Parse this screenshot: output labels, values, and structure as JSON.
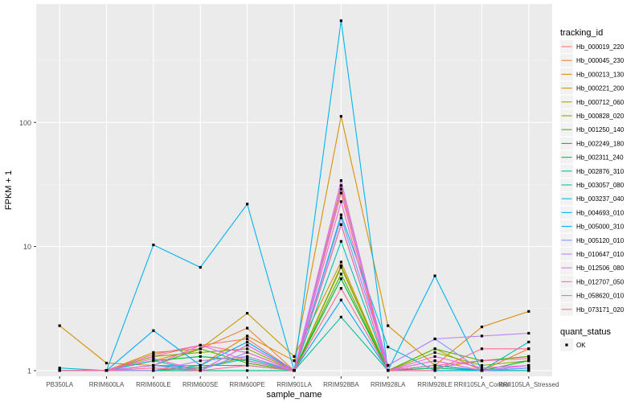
{
  "chart_data": {
    "type": "line",
    "xlabel": "sample_name",
    "ylabel": "FPKM + 1",
    "y_scale": "log10",
    "ylim": [
      0.9,
      900
    ],
    "y_ticks": [
      1,
      10,
      100
    ],
    "y_tick_labels": [
      "1",
      "10",
      "100"
    ],
    "categories": [
      "PB350LA",
      "RRIM600LA",
      "RRIM600LE",
      "RRIM600SE",
      "RRIM600PE",
      "RRIM901LA",
      "RRIM928BA",
      "RRIM928LA",
      "RRIM928LE",
      "RRII105LA_Control",
      "RRII105LA_Stressed"
    ],
    "grid": true,
    "legend_position": "right",
    "legend_title": "tracking_id",
    "series": [
      {
        "name": "Hb_000019_220",
        "color": "#F8766D",
        "values": [
          1.0,
          1.0,
          1.3,
          1.6,
          1.8,
          1.0,
          27,
          1.0,
          1.1,
          1.0,
          1.0
        ]
      },
      {
        "name": "Hb_000045_230",
        "color": "#EB8335",
        "values": [
          1.0,
          1.0,
          1.2,
          1.5,
          2.2,
          1.0,
          31,
          1.0,
          1.2,
          1.0,
          1.5
        ]
      },
      {
        "name": "Hb_000213_130",
        "color": "#DA8F00",
        "values": [
          2.3,
          1.15,
          1.1,
          1.1,
          1.9,
          1.2,
          112,
          2.3,
          1.1,
          2.25,
          3.0
        ]
      },
      {
        "name": "Hb_000221_200",
        "color": "#C49A00",
        "values": [
          1.0,
          1.0,
          1.4,
          1.5,
          2.9,
          1.3,
          7.5,
          1.0,
          1.05,
          1.2,
          1.3
        ]
      },
      {
        "name": "Hb_000712_060",
        "color": "#A9A400",
        "values": [
          1.0,
          1.0,
          1.0,
          1.05,
          1.3,
          1.0,
          7.0,
          1.0,
          1.5,
          1.0,
          1.0
        ]
      },
      {
        "name": "Hb_000828_020",
        "color": "#86AC00",
        "values": [
          1.0,
          1.0,
          1.3,
          1.4,
          1.5,
          1.0,
          6.8,
          1.0,
          1.4,
          1.1,
          1.2
        ]
      },
      {
        "name": "Hb_001250_140",
        "color": "#53B400",
        "values": [
          1.0,
          1.0,
          1.1,
          1.5,
          1.15,
          1.0,
          6.0,
          1.0,
          1.5,
          1.2,
          1.3
        ]
      },
      {
        "name": "Hb_002249_180",
        "color": "#00BA38",
        "values": [
          1.0,
          1.0,
          1.2,
          1.3,
          1.2,
          1.0,
          5.5,
          1.0,
          1.1,
          1.0,
          1.2
        ]
      },
      {
        "name": "Hb_002311_240",
        "color": "#00BE6D",
        "values": [
          1.0,
          1.0,
          1.0,
          1.1,
          1.1,
          1.0,
          15,
          1.0,
          1.05,
          1.0,
          1.0
        ]
      },
      {
        "name": "Hb_002876_310",
        "color": "#00C094",
        "values": [
          1.0,
          1.0,
          1.0,
          1.0,
          1.0,
          1.0,
          2.7,
          1.0,
          1.0,
          1.0,
          1.05
        ]
      },
      {
        "name": "Hb_003057_080",
        "color": "#00C0B6",
        "values": [
          1.0,
          1.0,
          1.1,
          1.05,
          1.25,
          1.0,
          11,
          1.0,
          1.1,
          1.0,
          1.7
        ]
      },
      {
        "name": "Hb_003237_040",
        "color": "#00BDD4",
        "values": [
          1.05,
          1.0,
          1.2,
          1.0,
          1.6,
          1.0,
          18,
          1.55,
          1.0,
          1.0,
          1.0
        ]
      },
      {
        "name": "Hb_004693_010",
        "color": "#00B5EE",
        "values": [
          1.0,
          1.0,
          10.3,
          6.8,
          22,
          1.0,
          660,
          1.0,
          5.8,
          1.0,
          1.05
        ]
      },
      {
        "name": "Hb_005000_310",
        "color": "#00A9FF",
        "values": [
          1.0,
          1.0,
          2.1,
          1.1,
          1.7,
          1.0,
          3.7,
          1.0,
          1.1,
          1.0,
          1.1
        ]
      },
      {
        "name": "Hb_005120_010",
        "color": "#7F96FF",
        "values": [
          1.0,
          1.0,
          1.1,
          1.0,
          1.4,
          1.0,
          17,
          1.1,
          1.8,
          1.0,
          1.05
        ]
      },
      {
        "name": "Hb_010647_010",
        "color": "#B983FF",
        "values": [
          1.0,
          1.0,
          1.0,
          1.2,
          1.3,
          1.0,
          29,
          1.1,
          1.8,
          1.9,
          2.0
        ]
      },
      {
        "name": "Hb_012506_080",
        "color": "#E06FF4",
        "values": [
          1.0,
          1.0,
          1.1,
          1.6,
          1.2,
          1.0,
          34,
          1.0,
          1.2,
          1.0,
          1.1
        ]
      },
      {
        "name": "Hb_012707_050",
        "color": "#F564E3",
        "values": [
          1.0,
          1.0,
          1.25,
          1.0,
          1.6,
          1.0,
          23,
          1.0,
          1.3,
          1.05,
          1.1
        ]
      },
      {
        "name": "Hb_058620_010",
        "color": "#FF64B0",
        "values": [
          1.0,
          1.0,
          1.35,
          1.6,
          1.4,
          1.0,
          15,
          1.0,
          1.1,
          1.2,
          1.25
        ]
      },
      {
        "name": "Hb_073171_020",
        "color": "#FF6C91",
        "values": [
          1.0,
          1.0,
          1.05,
          1.0,
          1.1,
          1.0,
          4.6,
          1.0,
          1.0,
          1.5,
          1.5
        ]
      }
    ],
    "shape_legend": {
      "title": "quant_status",
      "items": [
        {
          "label": "OK"
        }
      ]
    }
  }
}
